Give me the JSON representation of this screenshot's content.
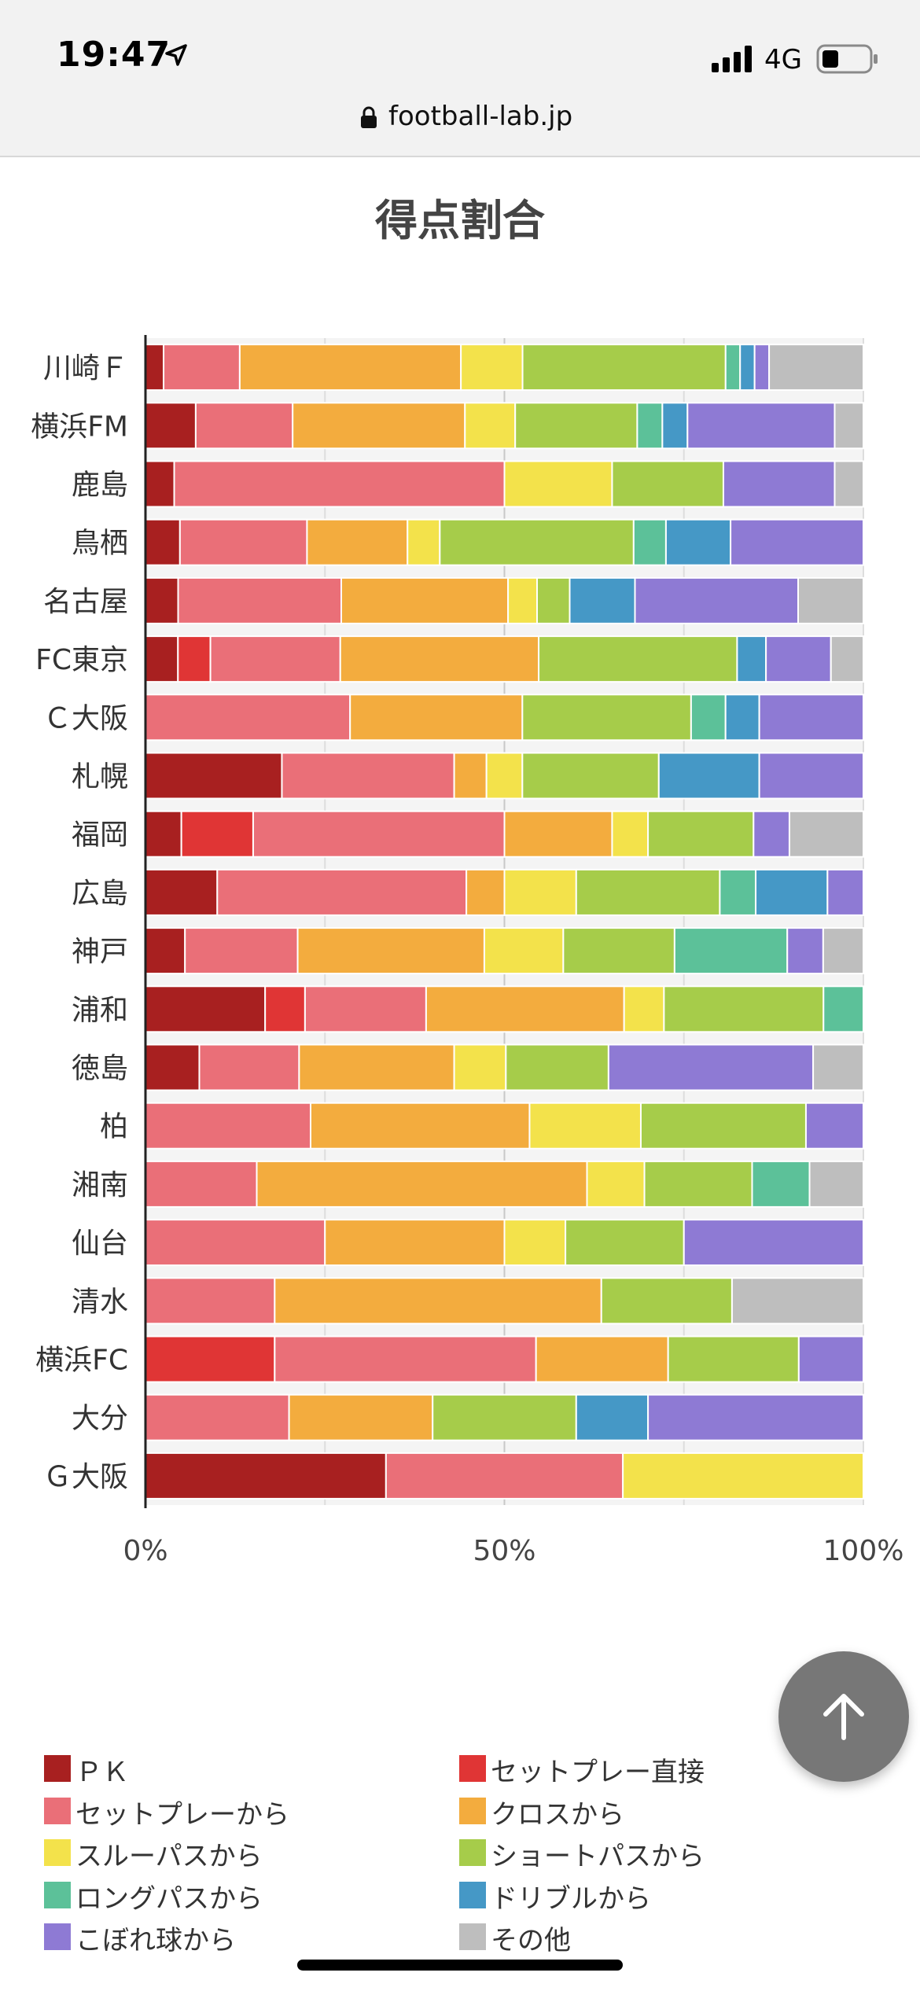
{
  "status_bar": {
    "time": "19:47",
    "network": "4G",
    "icons": [
      "location-arrow-icon",
      "signal-bars-icon",
      "battery-icon"
    ]
  },
  "browser": {
    "url": "football-lab.jp",
    "icon": "lock-icon"
  },
  "colors": {
    "pk": "#a82020",
    "setplay_direct": "#e03535",
    "setplay": "#ea6f78",
    "cross": "#f3ac3e",
    "through": "#f3e24b",
    "short": "#a6cc4a",
    "long": "#5cc199",
    "dribble": "#4598c6",
    "loose": "#8e7ad4",
    "other": "#bebebe"
  },
  "chart_data": {
    "type": "bar",
    "orientation": "horizontal",
    "stacked": "percent",
    "title": "得点割合",
    "xlabel": "",
    "ylabel": "",
    "xlim": [
      0,
      100
    ],
    "x_ticks": [
      "0%",
      "50%",
      "100%"
    ],
    "grid": true,
    "legend_position": "bottom",
    "categories": [
      "川崎Ｆ",
      "横浜FM",
      "鹿島",
      "鳥栖",
      "名古屋",
      "FC東京",
      "Ｃ大阪",
      "札幌",
      "福岡",
      "広島",
      "神戸",
      "浦和",
      "徳島",
      "柏",
      "湘南",
      "仙台",
      "清水",
      "横浜FC",
      "大分",
      "Ｇ大阪"
    ],
    "series": [
      {
        "name": "ＰＫ",
        "color_key": "pk",
        "values": [
          2.5,
          7,
          4,
          4.8,
          4.5,
          4.5,
          0,
          19,
          5,
          10,
          5.5,
          16.5,
          7.5,
          0,
          0,
          0,
          0,
          0,
          0,
          33.5
        ]
      },
      {
        "name": "セットプレー直接",
        "color_key": "setplay_direct",
        "values": [
          0,
          0,
          0,
          0,
          0,
          4.5,
          0,
          0,
          10,
          0,
          0,
          5.5,
          0,
          0,
          0,
          0,
          0,
          18,
          0,
          0
        ]
      },
      {
        "name": "セットプレーから",
        "color_key": "setplay",
        "values": [
          10.5,
          13.5,
          46,
          17.7,
          22.5,
          18,
          28.5,
          24,
          35,
          34.7,
          15.7,
          16.7,
          13.9,
          23,
          15.5,
          25,
          18,
          36.4,
          20,
          33
        ]
      },
      {
        "name": "クロスから",
        "color_key": "cross",
        "values": [
          30.5,
          24,
          0,
          14,
          23,
          27.5,
          24,
          4.5,
          15,
          5.3,
          26,
          27.3,
          21.6,
          30.5,
          46,
          25,
          45.5,
          18.4,
          20,
          0
        ]
      },
      {
        "name": "スルーパスから",
        "color_key": "through",
        "values": [
          8.5,
          7,
          15,
          4.5,
          4,
          0,
          0,
          5,
          5,
          10,
          11,
          5.5,
          7.2,
          15.5,
          8,
          8.5,
          0,
          0,
          0,
          33.5
        ]
      },
      {
        "name": "ショートパスから",
        "color_key": "short",
        "values": [
          28,
          17,
          15.5,
          27,
          4.5,
          27.5,
          23.5,
          19,
          14.7,
          20,
          15.5,
          22,
          14.3,
          23,
          15,
          16.5,
          18.2,
          18.2,
          20,
          0
        ]
      },
      {
        "name": "ロングパスから",
        "color_key": "long",
        "values": [
          2,
          3.5,
          0,
          4.5,
          0,
          0,
          4.8,
          0,
          0,
          5,
          15.7,
          5.5,
          0,
          0,
          8,
          0,
          0,
          0,
          0,
          0
        ]
      },
      {
        "name": "ドリブルから",
        "color_key": "dribble",
        "values": [
          2,
          3.5,
          0,
          9,
          9,
          4,
          4.7,
          14,
          0,
          10,
          0,
          0,
          0,
          0,
          0,
          0,
          0,
          0,
          10,
          0
        ]
      },
      {
        "name": "こぼれ球から",
        "color_key": "loose",
        "values": [
          2,
          20.5,
          15.5,
          18.5,
          22.5,
          9,
          14.5,
          14.5,
          5,
          5,
          5,
          0,
          28.5,
          8,
          0,
          25,
          0,
          9,
          30,
          0
        ]
      },
      {
        "name": "その他",
        "color_key": "other",
        "values": [
          13,
          4,
          4,
          0,
          9,
          4.5,
          0,
          0,
          10.3,
          0,
          5.6,
          0,
          7,
          0,
          7.5,
          0,
          18.3,
          0,
          0,
          0
        ]
      }
    ]
  },
  "scroll_top": {
    "icon": "arrow-up-icon"
  }
}
